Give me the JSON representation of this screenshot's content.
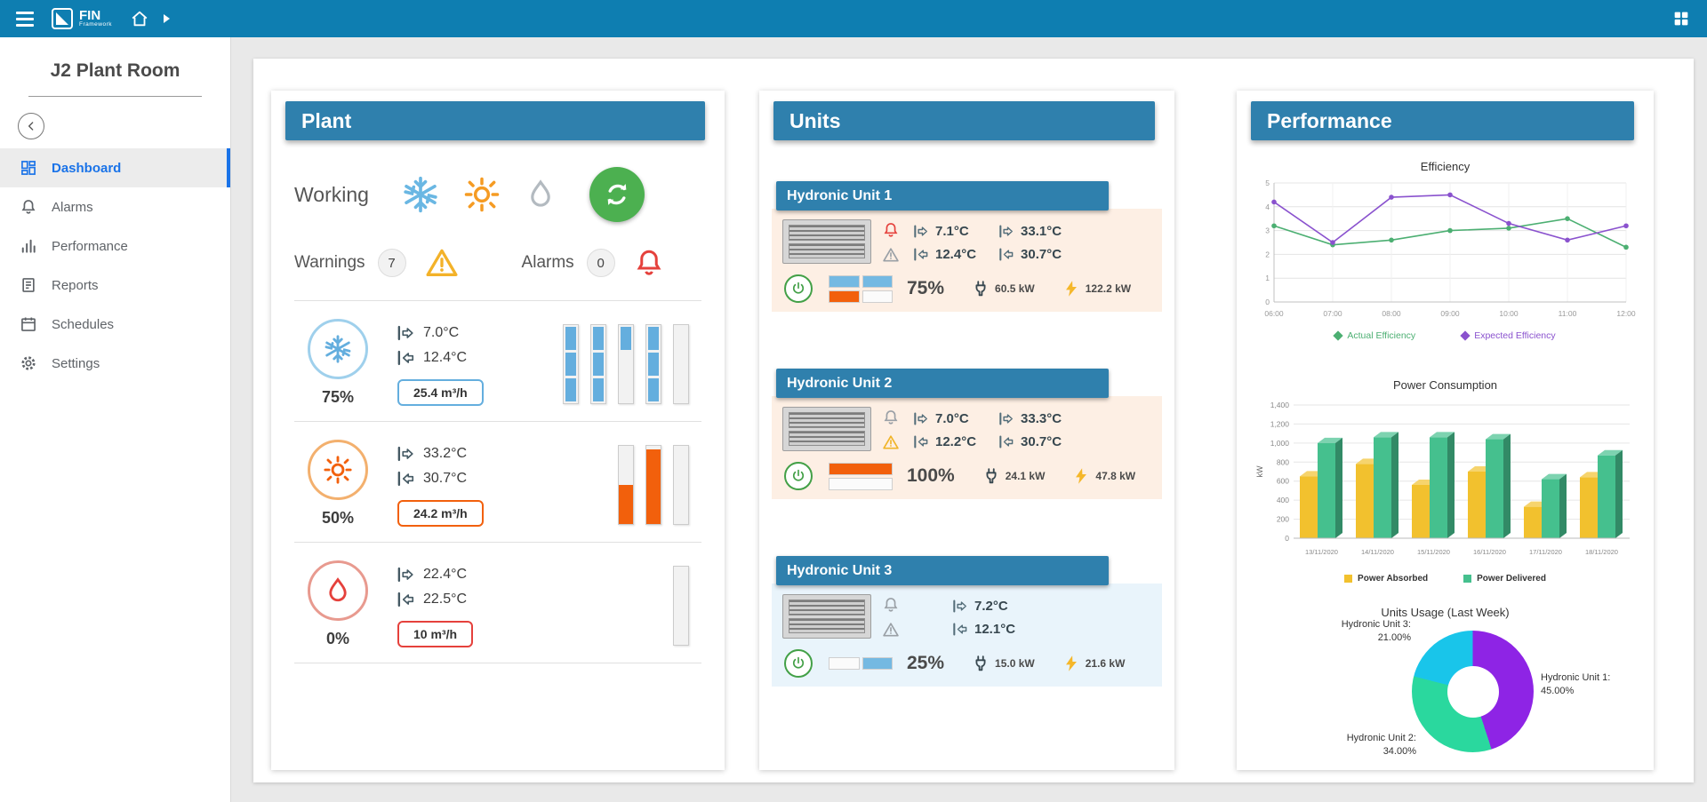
{
  "topbar": {
    "brand": "FIN",
    "brand_sub": "Framework",
    "icons": [
      "menu-icon",
      "home-icon",
      "caret-right-icon",
      "apps-grid-icon"
    ]
  },
  "sidebar": {
    "title": "J2 Plant Room",
    "items": [
      {
        "label": "Dashboard",
        "icon": "dashboard-icon",
        "active": true
      },
      {
        "label": "Alarms",
        "icon": "bell-icon",
        "active": false
      },
      {
        "label": "Performance",
        "icon": "bar-chart-icon",
        "active": false
      },
      {
        "label": "Reports",
        "icon": "report-icon",
        "active": false
      },
      {
        "label": "Schedules",
        "icon": "calendar-icon",
        "active": false
      },
      {
        "label": "Settings",
        "icon": "gear-icon",
        "active": false
      }
    ]
  },
  "plant": {
    "title": "Plant",
    "working_label": "Working",
    "working_icons": [
      "cooling-snowflake-icon",
      "heating-sun-icon",
      "water-drop-icon",
      "refresh-icon"
    ],
    "warnings_label": "Warnings",
    "warnings_count": "7",
    "alarms_label": "Alarms",
    "alarms_count": "0",
    "rows": [
      {
        "mode": "cooling",
        "percent": "75%",
        "supply_temp": "7.0°C",
        "return_temp": "12.4°C",
        "flow": "25.4 m³/h",
        "accent": "#64aede",
        "circle_color": "#9fd0ec",
        "bars": [
          1,
          1,
          0.34,
          1,
          0
        ],
        "segmented": true
      },
      {
        "mode": "heating",
        "percent": "50%",
        "supply_temp": "33.2°C",
        "return_temp": "30.7°C",
        "flow": "24.2 m³/h",
        "accent": "#f2600c",
        "circle_color": "#f3b06e",
        "bars": [
          0.5,
          0.95,
          0
        ],
        "segmented": false
      },
      {
        "mode": "hot-water",
        "percent": "0%",
        "supply_temp": "22.4°C",
        "return_temp": "22.5°C",
        "flow": "10 m³/h",
        "accent": "#e5413c",
        "circle_color": "#e89a8f",
        "bars": [
          0
        ],
        "segmented": false
      }
    ]
  },
  "units": {
    "title": "Units",
    "list": [
      {
        "name": "Hydronic Unit 1",
        "bg": "#fdefe4",
        "alarm_color": "#e5413c",
        "warn_color": "#9aa0a6",
        "temps1": {
          "supply": "7.1°C",
          "return": "12.4°C"
        },
        "temps2": {
          "supply": "33.1°C",
          "return": "30.7°C"
        },
        "percent": "75%",
        "power": "60.5 kW",
        "energy": "122.2 kW",
        "gauge": [
          [
            "#74b9e2",
            "#74b9e2"
          ],
          [
            "#f2600c",
            "#fbfbfb"
          ]
        ]
      },
      {
        "name": "Hydronic Unit 2",
        "bg": "#fdefe4",
        "alarm_color": "#9aa0a6",
        "warn_color": "#f0b429",
        "temps1": {
          "supply": "7.0°C",
          "return": "12.2°C"
        },
        "temps2": {
          "supply": "33.3°C",
          "return": "30.7°C"
        },
        "percent": "100%",
        "power": "24.1 kW",
        "energy": "47.8 kW",
        "gauge": [
          [
            "#f2600c"
          ],
          [
            "#fbfbfb"
          ]
        ]
      },
      {
        "name": "Hydronic Unit 3",
        "bg": "#e9f4fb",
        "alarm_color": "#9aa0a6",
        "warn_color": "#9aa0a6",
        "temps1": {
          "supply": "7.2°C",
          "return": "12.1°C"
        },
        "temps2": null,
        "percent": "25%",
        "power": "15.0 kW",
        "energy": "21.6 kW",
        "gauge": [
          [
            "#fbfbfb",
            "#74b9e2"
          ]
        ]
      }
    ]
  },
  "performance": {
    "title": "Performance"
  },
  "chart_data": [
    {
      "type": "line",
      "title": "Efficiency",
      "x": [
        "06:00",
        "07:00",
        "08:00",
        "09:00",
        "10:00",
        "11:00",
        "12:00"
      ],
      "series": [
        {
          "name": "Actual Efficiency",
          "color": "#4caf72",
          "values": [
            3.2,
            2.4,
            2.6,
            3.0,
            3.1,
            3.5,
            2.3
          ]
        },
        {
          "name": "Expected Efficiency",
          "color": "#8a52ce",
          "values": [
            4.2,
            2.5,
            4.4,
            4.5,
            3.3,
            2.6,
            3.2
          ]
        }
      ],
      "xlabel": "",
      "ylabel": "",
      "ylim": [
        0,
        5
      ],
      "yticks": [
        0,
        1,
        2,
        3,
        4,
        5
      ],
      "grid": true,
      "legend_position": "bottom"
    },
    {
      "type": "bar",
      "title": "Power Consumption",
      "categories": [
        "13/11/2020",
        "14/11/2020",
        "15/11/2020",
        "16/11/2020",
        "17/11/2020",
        "18/11/2020"
      ],
      "series": [
        {
          "name": "Power Absorbed",
          "color": "#f2c12e",
          "values": [
            650,
            780,
            560,
            700,
            330,
            640
          ]
        },
        {
          "name": "Power Delivered",
          "color": "#45c08e",
          "values": [
            1000,
            1060,
            1060,
            1040,
            620,
            870
          ]
        }
      ],
      "xlabel": "",
      "ylabel": "kW",
      "ylim": [
        0,
        1400
      ],
      "yticks": [
        0,
        200,
        400,
        600,
        800,
        1000,
        1200,
        1400
      ],
      "grid": true,
      "legend_position": "bottom",
      "style": "3d"
    },
    {
      "type": "pie",
      "title": "Units Usage (Last Week)",
      "donut": true,
      "slices": [
        {
          "name": "Hydronic Unit 1:",
          "pct": "45.00%",
          "value": 45,
          "color": "#8e24e5"
        },
        {
          "name": "Hydronic Unit 2:",
          "pct": "34.00%",
          "value": 34,
          "color": "#2ad89e"
        },
        {
          "name": "Hydronic Unit 3:",
          "pct": "21.00%",
          "value": 21,
          "color": "#19c5ea"
        }
      ]
    }
  ]
}
